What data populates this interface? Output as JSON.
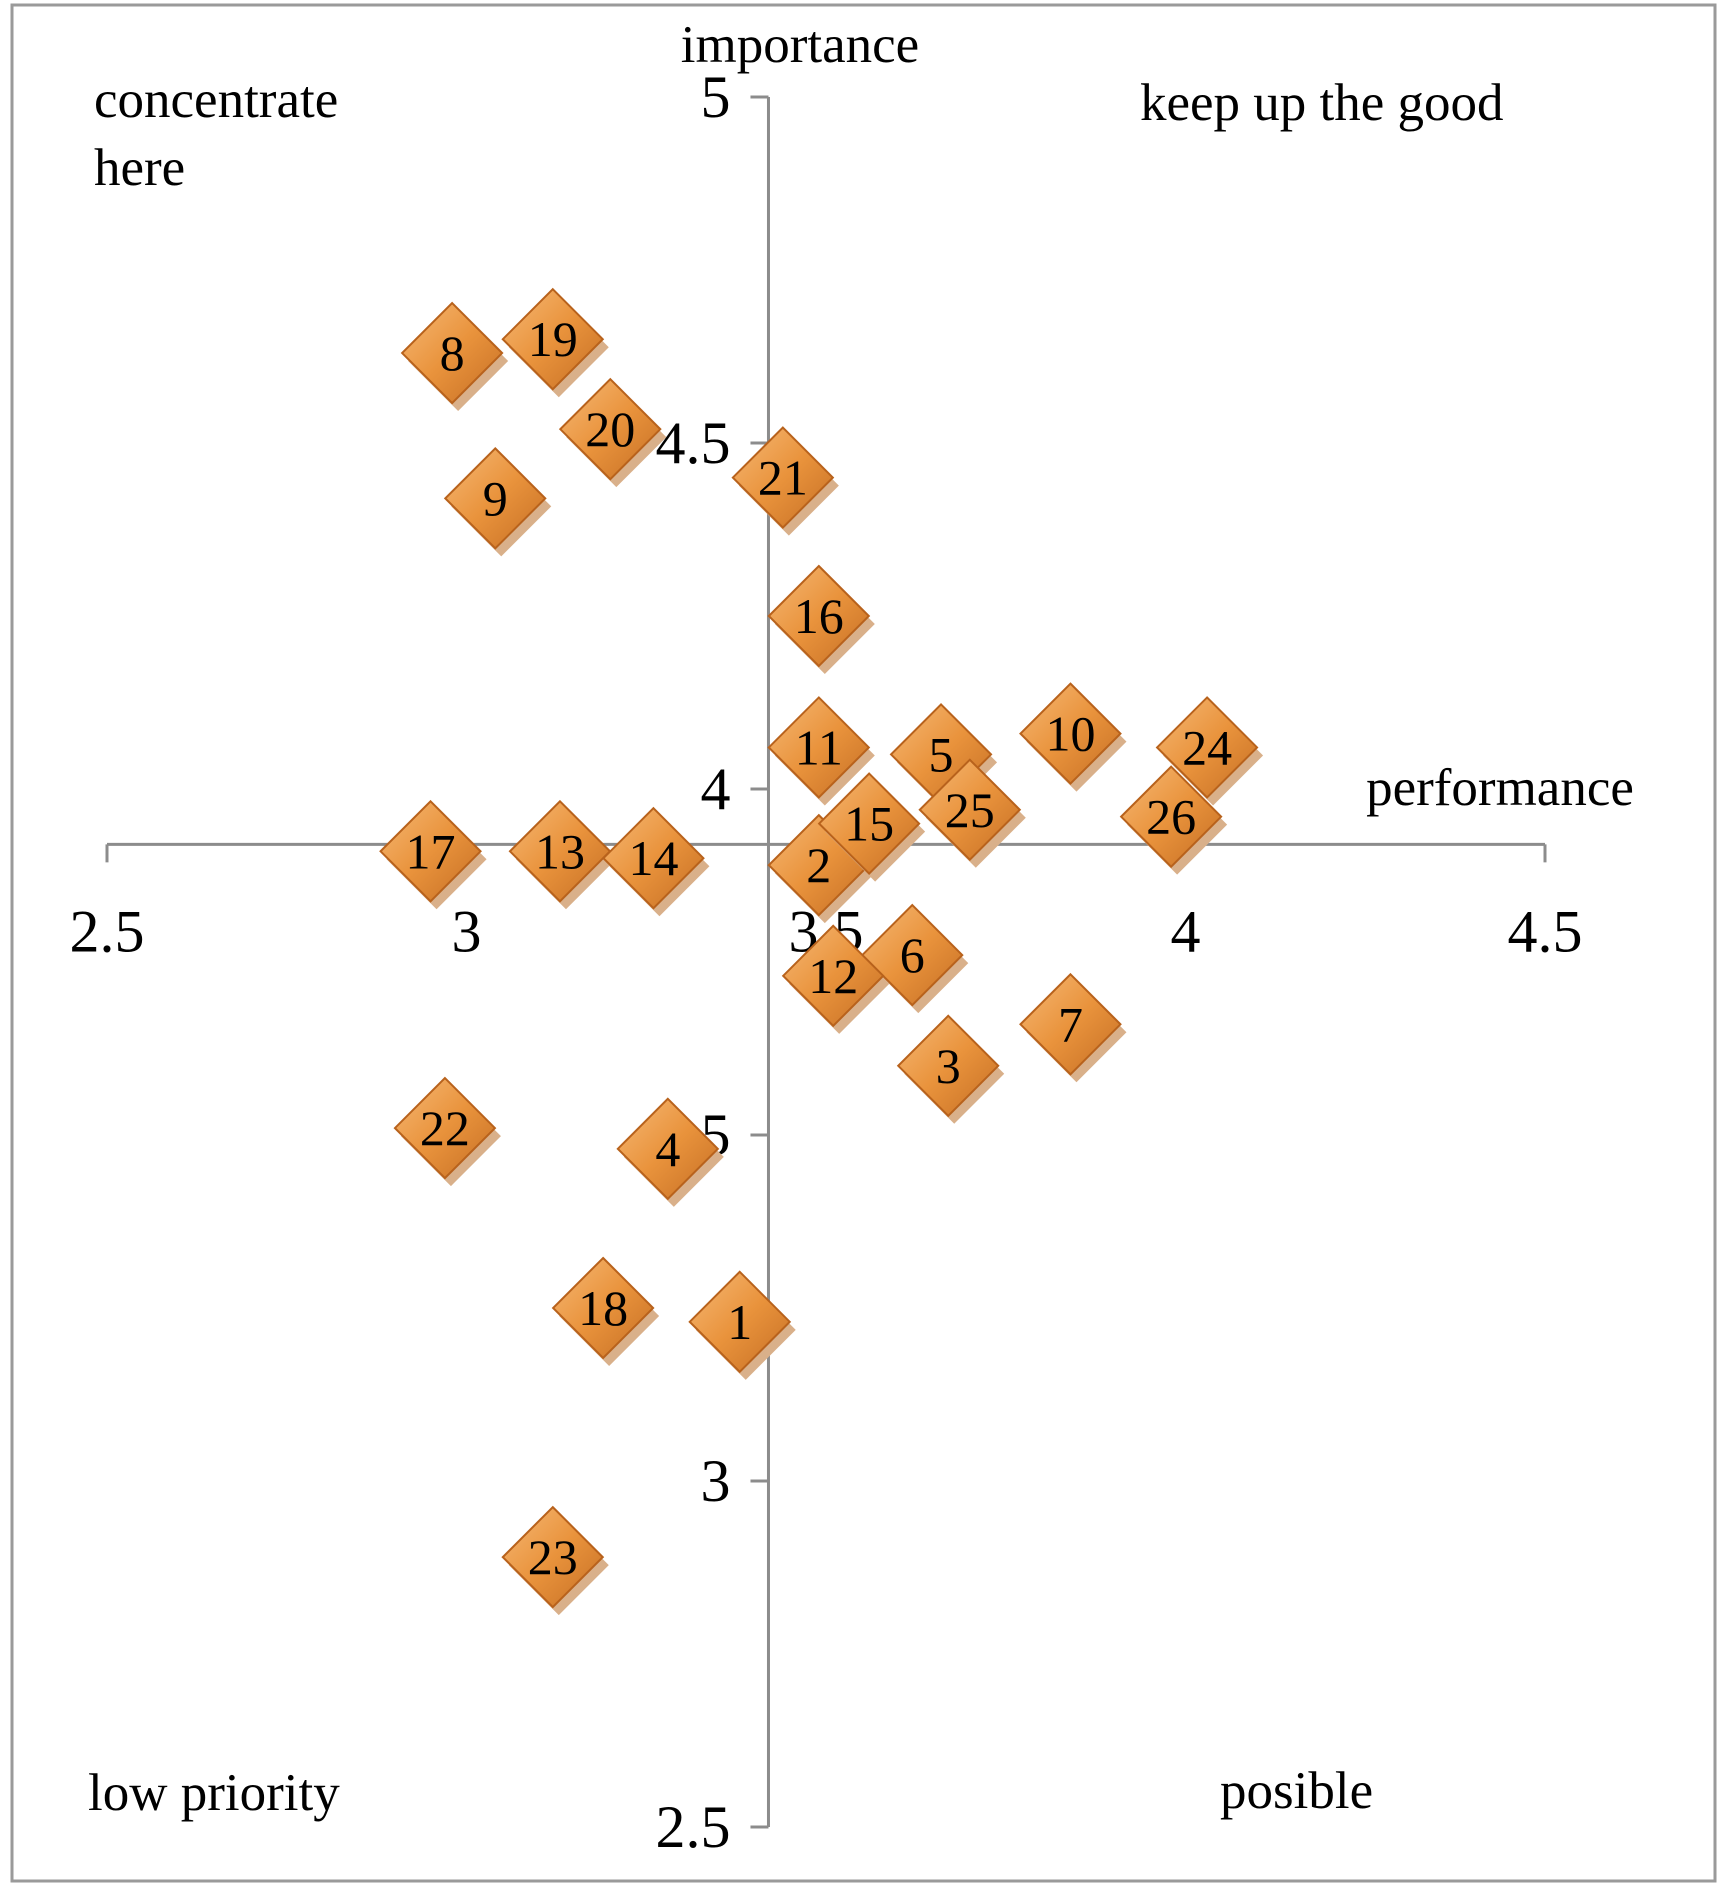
{
  "colors": {
    "marker_fill": "#E9933C",
    "marker_light": "#F6B976",
    "marker_dark": "#B8621C",
    "marker_shadow": "#D9B08A",
    "axis": "#8C8C8C",
    "frame": "#9A9A9A"
  },
  "chart_data": {
    "type": "scatter",
    "marker": "diamond",
    "xlabel": "performance",
    "ylabel": "importance",
    "xlim": [
      2.5,
      4.5
    ],
    "ylim": [
      2.5,
      5
    ],
    "x_ticks": [
      "2.5",
      "3",
      "3.5",
      "4",
      "4.5"
    ],
    "y_ticks": [
      "2.5",
      "3",
      "3.5",
      "4",
      "4.5",
      "5"
    ],
    "x_axis_crosses_at_y": 3.92,
    "y_axis_crosses_at_x": 3.42,
    "grid": false,
    "quadrant_labels": {
      "top_left": [
        "concentrate",
        "here"
      ],
      "top_right": [
        "keep up the good"
      ],
      "bottom_left": [
        "low priority"
      ],
      "bottom_right": [
        "posible"
      ]
    },
    "points": [
      {
        "label": "1",
        "x": 3.38,
        "y": 3.23
      },
      {
        "label": "2",
        "x": 3.49,
        "y": 3.89
      },
      {
        "label": "3",
        "x": 3.67,
        "y": 3.6
      },
      {
        "label": "4",
        "x": 3.28,
        "y": 3.48
      },
      {
        "label": "5",
        "x": 3.66,
        "y": 4.05
      },
      {
        "label": "6",
        "x": 3.62,
        "y": 3.76
      },
      {
        "label": "7",
        "x": 3.84,
        "y": 3.66
      },
      {
        "label": "8",
        "x": 2.98,
        "y": 4.63
      },
      {
        "label": "9",
        "x": 3.04,
        "y": 4.42
      },
      {
        "label": "10",
        "x": 3.84,
        "y": 4.08
      },
      {
        "label": "11",
        "x": 3.49,
        "y": 4.06
      },
      {
        "label": "12",
        "x": 3.51,
        "y": 3.73
      },
      {
        "label": "13",
        "x": 3.13,
        "y": 3.91
      },
      {
        "label": "14",
        "x": 3.26,
        "y": 3.9
      },
      {
        "label": "15",
        "x": 3.56,
        "y": 3.95
      },
      {
        "label": "16",
        "x": 3.49,
        "y": 4.25
      },
      {
        "label": "17",
        "x": 2.95,
        "y": 3.91
      },
      {
        "label": "18",
        "x": 3.19,
        "y": 3.25
      },
      {
        "label": "19",
        "x": 3.12,
        "y": 4.65
      },
      {
        "label": "20",
        "x": 3.2,
        "y": 4.52
      },
      {
        "label": "21",
        "x": 3.44,
        "y": 4.45
      },
      {
        "label": "22",
        "x": 2.97,
        "y": 3.51
      },
      {
        "label": "23",
        "x": 3.12,
        "y": 2.89
      },
      {
        "label": "24",
        "x": 4.03,
        "y": 4.06
      },
      {
        "label": "25",
        "x": 3.7,
        "y": 3.97
      },
      {
        "label": "26",
        "x": 3.98,
        "y": 3.96
      }
    ]
  }
}
